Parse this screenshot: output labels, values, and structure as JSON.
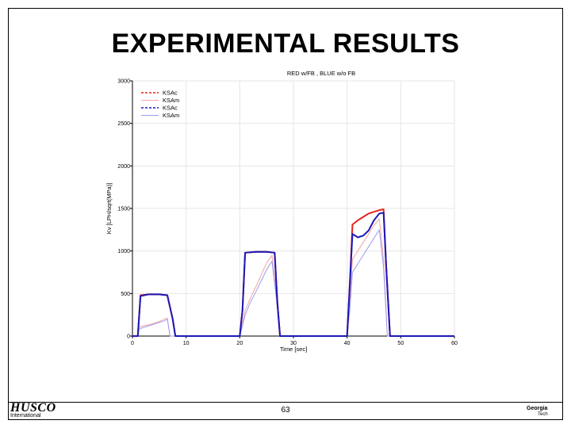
{
  "slide": {
    "title": "EXPERIMENTAL RESULTS",
    "page_number": "63",
    "logo_left": {
      "main": "HUSCO",
      "sub": "International"
    },
    "logo_right": {
      "top": "Georgia",
      "bottom": "Tech"
    }
  },
  "chart_data": {
    "type": "line",
    "title": "RED w/FB , BLUE w/o FB",
    "xlabel": "Time [sec]",
    "ylabel": "Kv [LPH/sqrt(MPa)]",
    "xlim": [
      0,
      60
    ],
    "ylim": [
      0,
      3000
    ],
    "xticks": [
      0,
      10,
      20,
      30,
      40,
      50,
      60
    ],
    "yticks": [
      0,
      500,
      1000,
      1500,
      2000,
      2500,
      3000
    ],
    "grid": true,
    "legend_position": "top-left",
    "series": [
      {
        "name": "KSAc",
        "color": "#e8231f",
        "style": "dashed",
        "x": [
          0,
          1,
          1.5,
          3,
          5,
          6.5,
          7.5,
          8,
          20,
          20.5,
          21,
          23,
          25,
          26.5,
          27,
          27.5,
          40,
          40.5,
          41,
          42,
          43,
          44,
          45,
          46,
          46.8,
          47.3,
          48,
          60
        ],
        "y": [
          0,
          0,
          480,
          490,
          490,
          480,
          200,
          0,
          0,
          300,
          980,
          990,
          990,
          980,
          400,
          0,
          0,
          600,
          1310,
          1360,
          1400,
          1440,
          1460,
          1480,
          1490,
          800,
          0,
          0
        ]
      },
      {
        "name": "KSAm",
        "color": "#f4a4a4",
        "style": "solid",
        "x": [
          0,
          1,
          1.2,
          2,
          3,
          4,
          5,
          6,
          6.5,
          7,
          20,
          20.5,
          21,
          22,
          23,
          24,
          25,
          26,
          26.8,
          27.5,
          40,
          40.5,
          41,
          42,
          43,
          44,
          45,
          46,
          46.8,
          47.5,
          60
        ],
        "y": [
          0,
          0,
          100,
          120,
          130,
          150,
          170,
          200,
          210,
          0,
          0,
          150,
          300,
          450,
          580,
          720,
          860,
          950,
          500,
          0,
          0,
          400,
          900,
          1000,
          1100,
          1200,
          1300,
          1380,
          900,
          0,
          0
        ]
      },
      {
        "name": "KSAc",
        "color": "#1a1ab8",
        "style": "dashed",
        "x": [
          0,
          1,
          1.5,
          3,
          5,
          6.5,
          7.5,
          8,
          20,
          20.5,
          21,
          23,
          25,
          26.5,
          27,
          27.5,
          40,
          40.5,
          41,
          42,
          43,
          44,
          45,
          46,
          46.8,
          47.3,
          48,
          60
        ],
        "y": [
          0,
          0,
          470,
          490,
          490,
          480,
          200,
          0,
          0,
          300,
          980,
          990,
          990,
          980,
          400,
          0,
          0,
          600,
          1200,
          1160,
          1180,
          1240,
          1360,
          1440,
          1450,
          800,
          0,
          0
        ]
      },
      {
        "name": "KSAm",
        "color": "#9c9cf2",
        "style": "solid",
        "x": [
          0,
          1,
          1.2,
          2,
          3,
          4,
          5,
          6,
          6.5,
          7,
          20,
          20.5,
          21,
          22,
          23,
          24,
          25,
          26,
          26.8,
          27.5,
          40,
          40.5,
          41,
          42,
          43,
          44,
          45,
          46,
          46.8,
          47.5,
          60
        ],
        "y": [
          0,
          0,
          80,
          100,
          120,
          140,
          160,
          180,
          200,
          0,
          0,
          120,
          250,
          400,
          520,
          650,
          780,
          880,
          450,
          0,
          0,
          300,
          750,
          850,
          950,
          1050,
          1150,
          1250,
          800,
          0,
          0
        ]
      }
    ]
  }
}
